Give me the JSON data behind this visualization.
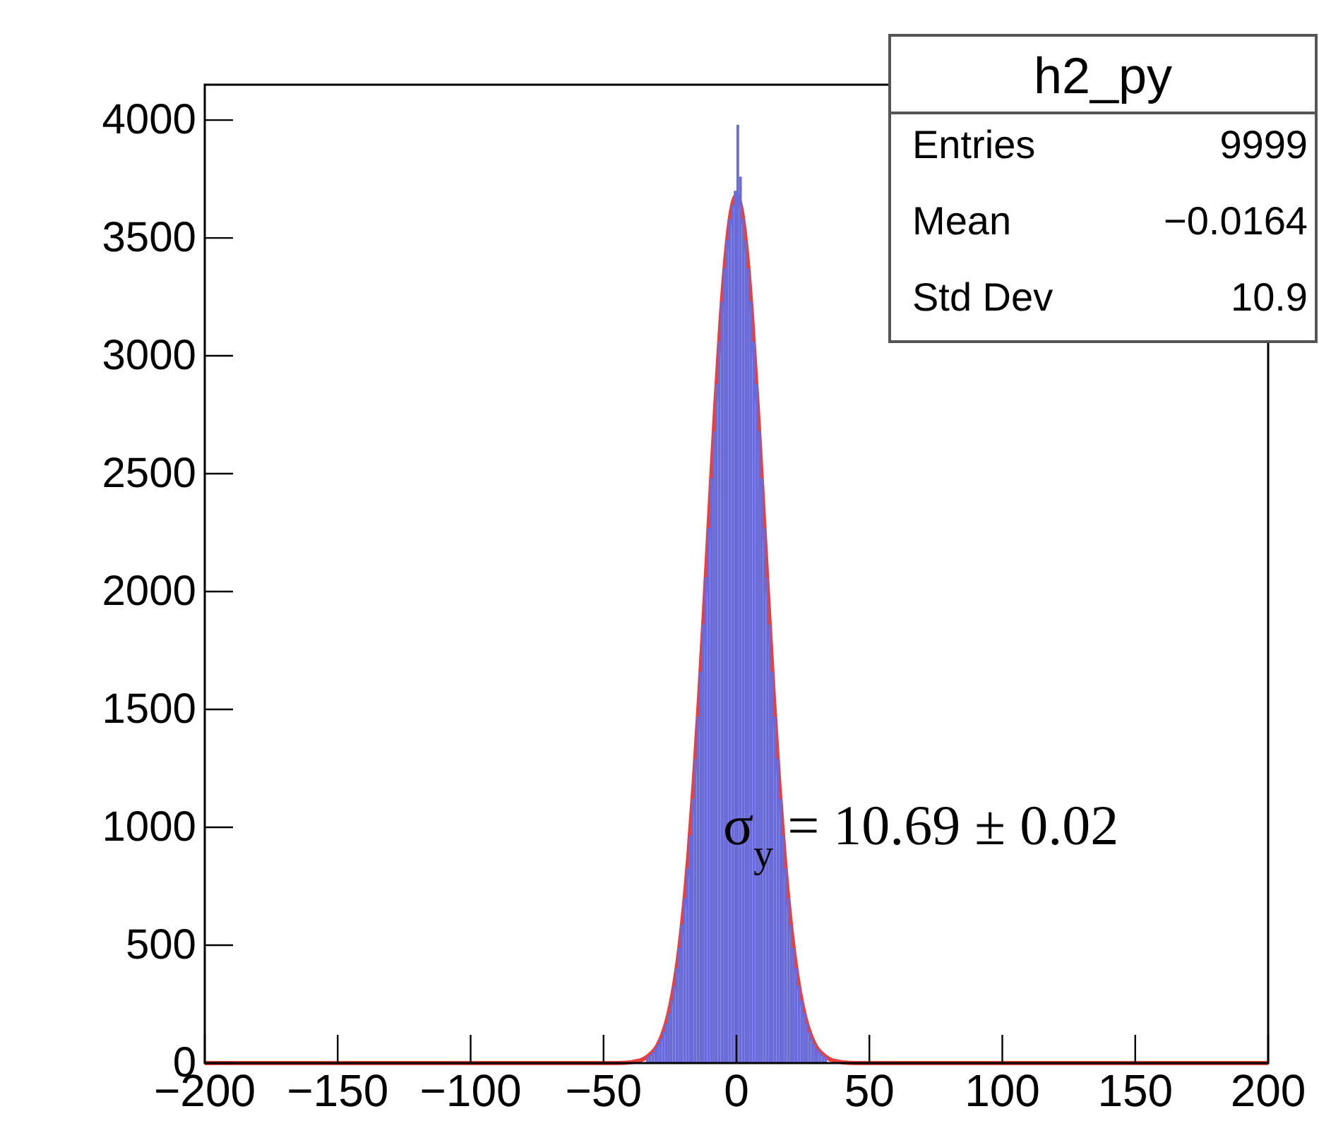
{
  "chart_data": {
    "type": "histogram",
    "title": "h2_py",
    "annotations": [
      "Entries",
      "9999",
      "Mean",
      "−0.0164",
      "Std Dev",
      "10.9",
      "σ$_{y}$ = 10.69 ± 0.02"
    ],
    "bins": [
      -34,
      -33,
      -32,
      -31,
      -30,
      -29,
      -28,
      -27,
      -26,
      -25,
      -24,
      -23,
      -22,
      -21,
      -20,
      -19,
      -18,
      -17,
      -16,
      -15,
      -14,
      -13,
      -12,
      -11,
      -10,
      -9,
      -8,
      -7,
      -6,
      -5,
      -4,
      -3,
      -2,
      -1,
      0,
      1,
      2,
      3,
      4,
      5,
      6,
      7,
      8,
      9,
      10,
      11,
      12,
      13,
      14,
      15,
      16,
      17,
      18,
      19,
      20,
      21,
      22,
      23,
      24,
      25,
      26,
      27,
      28,
      29,
      30,
      31,
      32,
      33,
      34
    ],
    "values": [
      26,
      35,
      47,
      61,
      80,
      103,
      132,
      168,
      212,
      266,
      328,
      402,
      488,
      587,
      699,
      825,
      965,
      1120,
      1290,
      1470,
      1660,
      1860,
      2060,
      2270,
      2480,
      2680,
      2880,
      3060,
      3230,
      3370,
      3490,
      3580,
      3640,
      3700,
      3980,
      3760,
      3580,
      3490,
      3370,
      3230,
      3060,
      2880,
      2680,
      2480,
      2270,
      2060,
      1860,
      1660,
      1470,
      1290,
      1120,
      965,
      825,
      699,
      587,
      488,
      402,
      328,
      266,
      212,
      168,
      132,
      103,
      80,
      61,
      47,
      35,
      26
    ],
    "color": "#6a6ad8",
    "series": [
      {
        "type": "line",
        "color": "#e8403c",
        "x": [
          -200,
          -45,
          -40,
          -38,
          -36,
          -34,
          -32,
          -30,
          -28,
          -26,
          -24,
          -22,
          -20,
          -18,
          -16,
          -14,
          -12,
          -10,
          -8,
          -6,
          -4,
          -2,
          0,
          2,
          4,
          6,
          8,
          10,
          12,
          14,
          16,
          18,
          20,
          22,
          24,
          26,
          28,
          30,
          32,
          34,
          36,
          38,
          40,
          45,
          200
        ],
        "values": [
          0,
          0,
          3,
          7,
          12,
          23,
          42,
          69,
          117,
          189,
          295,
          443,
          640,
          893,
          1201,
          1561,
          1960,
          2377,
          2782,
          3145,
          3431,
          3616,
          3680,
          3616,
          3431,
          3145,
          2782,
          2377,
          1960,
          1561,
          1201,
          893,
          640,
          443,
          295,
          189,
          117,
          69,
          42,
          23,
          12,
          7,
          3,
          0,
          0
        ]
      }
    ],
    "xlim": [
      -200,
      200
    ],
    "ylim": [
      0,
      4150
    ],
    "xticks": [
      -200,
      -150,
      -100,
      -50,
      0,
      50,
      100,
      150,
      200
    ],
    "yticks": [
      0,
      500,
      1000,
      1500,
      2000,
      2500,
      3000,
      3500,
      4000
    ]
  }
}
